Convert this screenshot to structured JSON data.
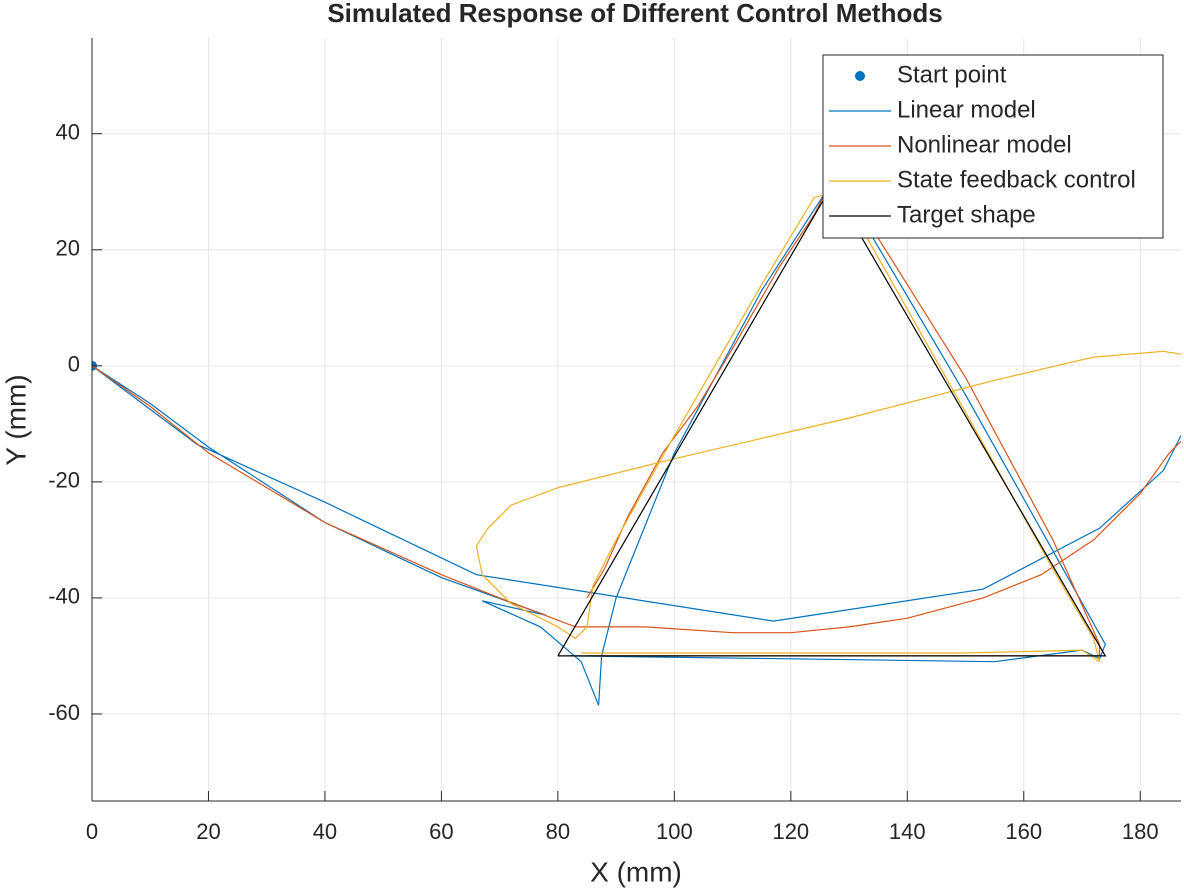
{
  "chart_data": {
    "type": "line",
    "title": "Simulated Response of Different Control Methods",
    "x_label": "X (mm)",
    "y_label": "Y (mm)",
    "xlim": [
      0,
      187
    ],
    "ylim": [
      -75,
      56.5
    ],
    "xticks": [
      0,
      20,
      40,
      60,
      80,
      100,
      120,
      140,
      160,
      180
    ],
    "yticks": [
      -60,
      -40,
      -20,
      0,
      20,
      40
    ],
    "grid": true,
    "legend": "top-right",
    "series": [
      {
        "name": "Start point",
        "type": "scatter",
        "color": "#0072bd",
        "x": [
          0
        ],
        "values": [
          0
        ]
      },
      {
        "name": "Linear model",
        "type": "line",
        "color": "#0072bd",
        "x": [
          187,
          184,
          173,
          153,
          117,
          66,
          40,
          18,
          0,
          10,
          20,
          40,
          60,
          78,
          67,
          77,
          84,
          87,
          87.5,
          90,
          100,
          115,
          126,
          130,
          150,
          174,
          173,
          170,
          155,
          120,
          82
        ],
        "values": [
          -12,
          -18,
          -28,
          -38.5,
          -44,
          -36,
          -23.5,
          -13.5,
          0,
          -6.5,
          -14,
          -27,
          -36.5,
          -43,
          -40.5,
          -45,
          -51,
          -58.5,
          -50,
          -40,
          -15,
          13,
          30,
          29,
          -5,
          -48,
          -50.5,
          -49,
          -51,
          -50.5,
          -50
        ]
      },
      {
        "name": "Nonlinear model",
        "type": "line",
        "color": "#d95319",
        "x": [
          0,
          10,
          20,
          40,
          60,
          70,
          83,
          95,
          110,
          120,
          130,
          140,
          153,
          163,
          172,
          180,
          185,
          187,
          82,
          85,
          88,
          92,
          98,
          104,
          110,
          118,
          124,
          126,
          130,
          140,
          150,
          165,
          173,
          173,
          160,
          140,
          100,
          85
        ],
        "values": [
          0,
          -7,
          -15,
          -27,
          -36,
          -40,
          -45,
          -45,
          -46,
          -46,
          -45,
          -43.5,
          -40,
          -36,
          -30,
          -22,
          -15,
          -13,
          null,
          -40,
          -35,
          -26,
          -15,
          -7,
          3,
          17,
          26,
          30,
          30,
          14,
          -2,
          -30,
          -48,
          -50,
          -50,
          -50,
          -50,
          -50
        ]
      },
      {
        "name": "State feedback control",
        "type": "line",
        "color": "#edb120",
        "x": [
          187,
          184,
          172,
          155,
          130,
          100,
          80,
          72,
          68,
          66,
          67,
          72,
          80,
          83,
          85,
          86,
          90,
          100,
          115,
          124,
          128,
          132,
          150,
          165,
          172,
          173,
          170,
          150,
          100,
          84
        ],
        "values": [
          2,
          2.5,
          1.5,
          -2.5,
          -9,
          -16,
          -21,
          -24,
          -28,
          -31,
          -36,
          -41,
          -45,
          -47,
          -45,
          -38,
          -30,
          -12,
          14,
          29,
          30,
          24,
          -8,
          -35,
          -47,
          -51,
          -49,
          -49.5,
          -49.5,
          -49.5
        ]
      },
      {
        "name": "Target shape",
        "type": "line",
        "color": "#000000",
        "x": [
          80,
          127,
          174,
          80
        ],
        "values": [
          -50,
          31,
          -50,
          -50
        ]
      }
    ]
  }
}
